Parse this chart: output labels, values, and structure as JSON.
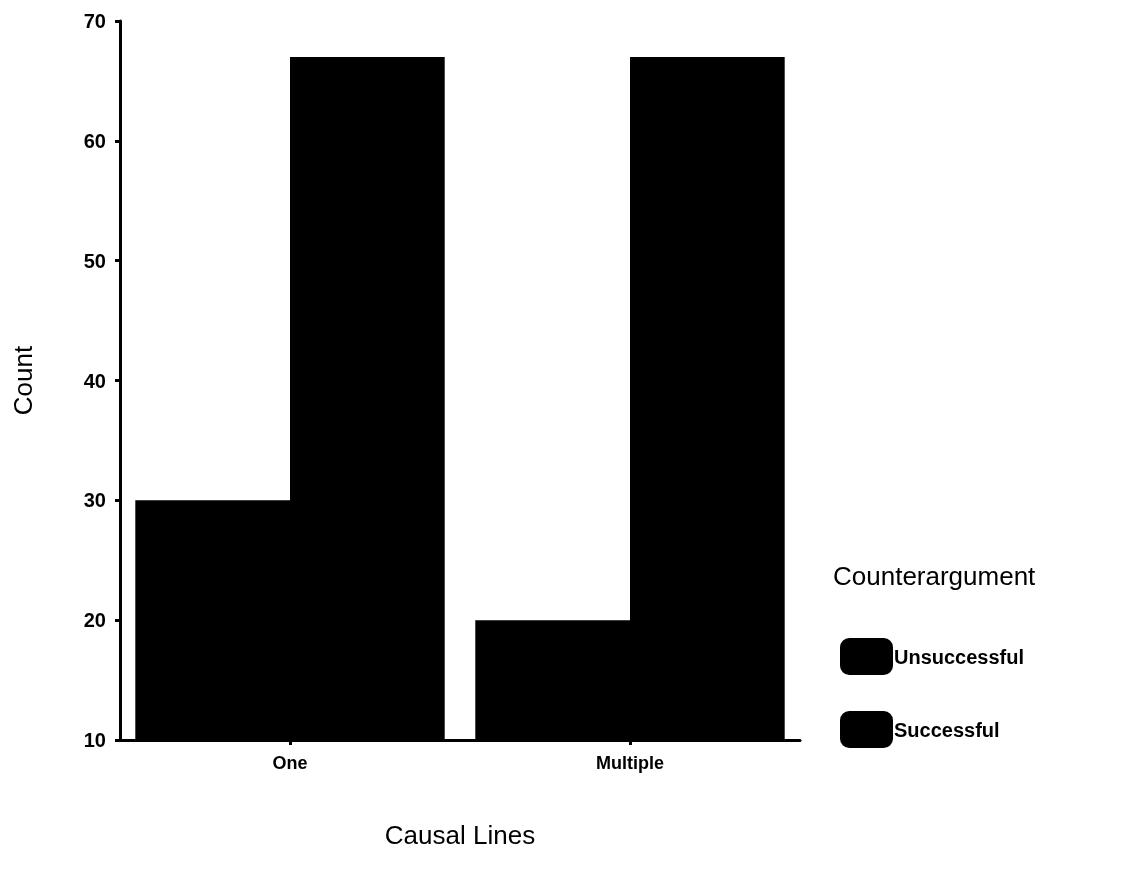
{
  "chart_data": {
    "type": "bar",
    "xlabel": "Causal Lines",
    "ylabel": "Count",
    "legend_title": "Counterargument",
    "categories": [
      "One",
      "Multiple"
    ],
    "series": [
      {
        "name": "Unsuccessful",
        "color": "#000000",
        "values": [
          30,
          20
        ]
      },
      {
        "name": "Successful",
        "color": "#000000",
        "values": [
          67,
          67
        ]
      }
    ],
    "ylim": [
      10,
      70
    ],
    "yticks": [
      10,
      20,
      30,
      40,
      50,
      60,
      70
    ],
    "legend": "right"
  }
}
